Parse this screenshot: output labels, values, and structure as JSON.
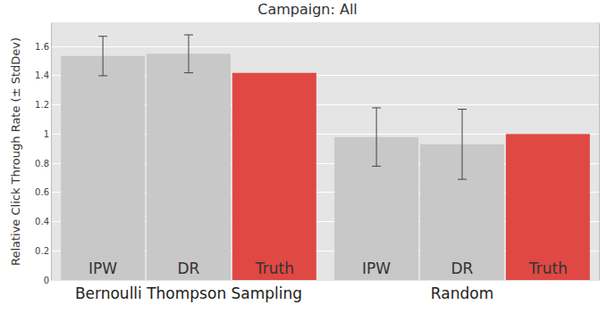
{
  "chart_data": {
    "type": "bar",
    "title": "Campaign: All",
    "y_label": "Relative Click Through Rate (± StdDev)",
    "categories": [
      "Bernoulli Thompson Sampling",
      "Random"
    ],
    "series": [
      {
        "name": "IPW",
        "color": "#c8c8c8",
        "values": [
          1.535,
          0.98
        ],
        "errors": [
          0.135,
          0.2
        ]
      },
      {
        "name": "DR",
        "color": "#c8c8c8",
        "values": [
          1.55,
          0.93
        ],
        "errors": [
          0.13,
          0.24
        ]
      },
      {
        "name": "Truth",
        "color": "#e04844",
        "values": [
          1.42,
          1.0
        ]
      }
    ],
    "ylim": [
      0,
      1.76
    ],
    "yticks": [
      0,
      0.2,
      0.4,
      0.6,
      0.8,
      1,
      1.2,
      1.4,
      1.6
    ],
    "grid": true
  }
}
